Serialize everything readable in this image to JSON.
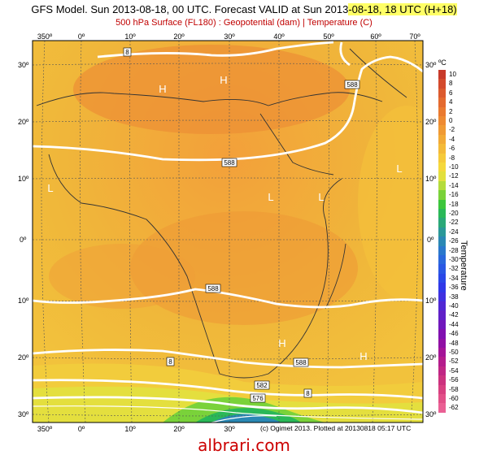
{
  "header": {
    "title_main": "GFS Model. Sun 2013-08-18, 00 UTC. Forecast VALID at Sun 2013",
    "title_valid": "-08-18, 18 UTC (H+18)",
    "subtitle": "500 hPa Surface (FL180) : Geopotential (dam) | Temperature (C)"
  },
  "map": {
    "lon_labels": [
      "350º",
      "0º",
      "10º",
      "20º",
      "30º",
      "40º",
      "50º",
      "60º",
      "70º"
    ],
    "lat_labels_left": [
      "30º",
      "20º",
      "10º",
      "0º",
      "10º",
      "20º",
      "30º"
    ],
    "lat_labels_right": [
      "30º",
      "20º",
      "10º",
      "0º",
      "10º",
      "20º",
      "30º"
    ],
    "contour_labels": [
      "588",
      "588",
      "588",
      "588",
      "588",
      "582",
      "576",
      "8",
      "8",
      "8"
    ],
    "pressure_centers": [
      {
        "type": "H"
      },
      {
        "type": "H"
      },
      {
        "type": "L"
      },
      {
        "type": "L"
      },
      {
        "type": "L"
      },
      {
        "type": "L"
      },
      {
        "type": "H"
      },
      {
        "type": "H"
      }
    ]
  },
  "colorbar": {
    "unit": "ºC",
    "label": "Temperature",
    "ticks": [
      "10",
      "8",
      "6",
      "4",
      "2",
      "0",
      "-2",
      "-4",
      "-6",
      "-8",
      "-10",
      "-12",
      "-14",
      "-16",
      "-18",
      "-20",
      "-22",
      "-24",
      "-26",
      "-28",
      "-30",
      "-32",
      "-34",
      "-36",
      "-38",
      "-40",
      "-42",
      "-44",
      "-46",
      "-48",
      "-50",
      "-52",
      "-54",
      "-56",
      "-58",
      "-60",
      "-62"
    ],
    "colors": [
      "#c83a2a",
      "#d44a2c",
      "#dc5a2e",
      "#e46a2f",
      "#ea7a30",
      "#ee8a32",
      "#f09a34",
      "#f2aa36",
      "#f4ba38",
      "#f6ca3a",
      "#f5d83c",
      "#e2e03e",
      "#b4dc3c",
      "#7ad23a",
      "#3cc63c",
      "#2ab858",
      "#2aa878",
      "#2a9898",
      "#2a88b4",
      "#2a78cc",
      "#2a68dc",
      "#2a58e4",
      "#2a48e8",
      "#3038e8",
      "#4030e0",
      "#5028d4",
      "#6020c8",
      "#7018bc",
      "#8010b0",
      "#9010a4",
      "#a41498",
      "#b41c8c",
      "#c02684",
      "#cc327e",
      "#d84080",
      "#e25088",
      "#ea6094"
    ]
  },
  "footer": {
    "credit": "(c) Ogimet 2013. Plotted at 20130818 05:17 UTC",
    "watermark": "albrari.com"
  }
}
